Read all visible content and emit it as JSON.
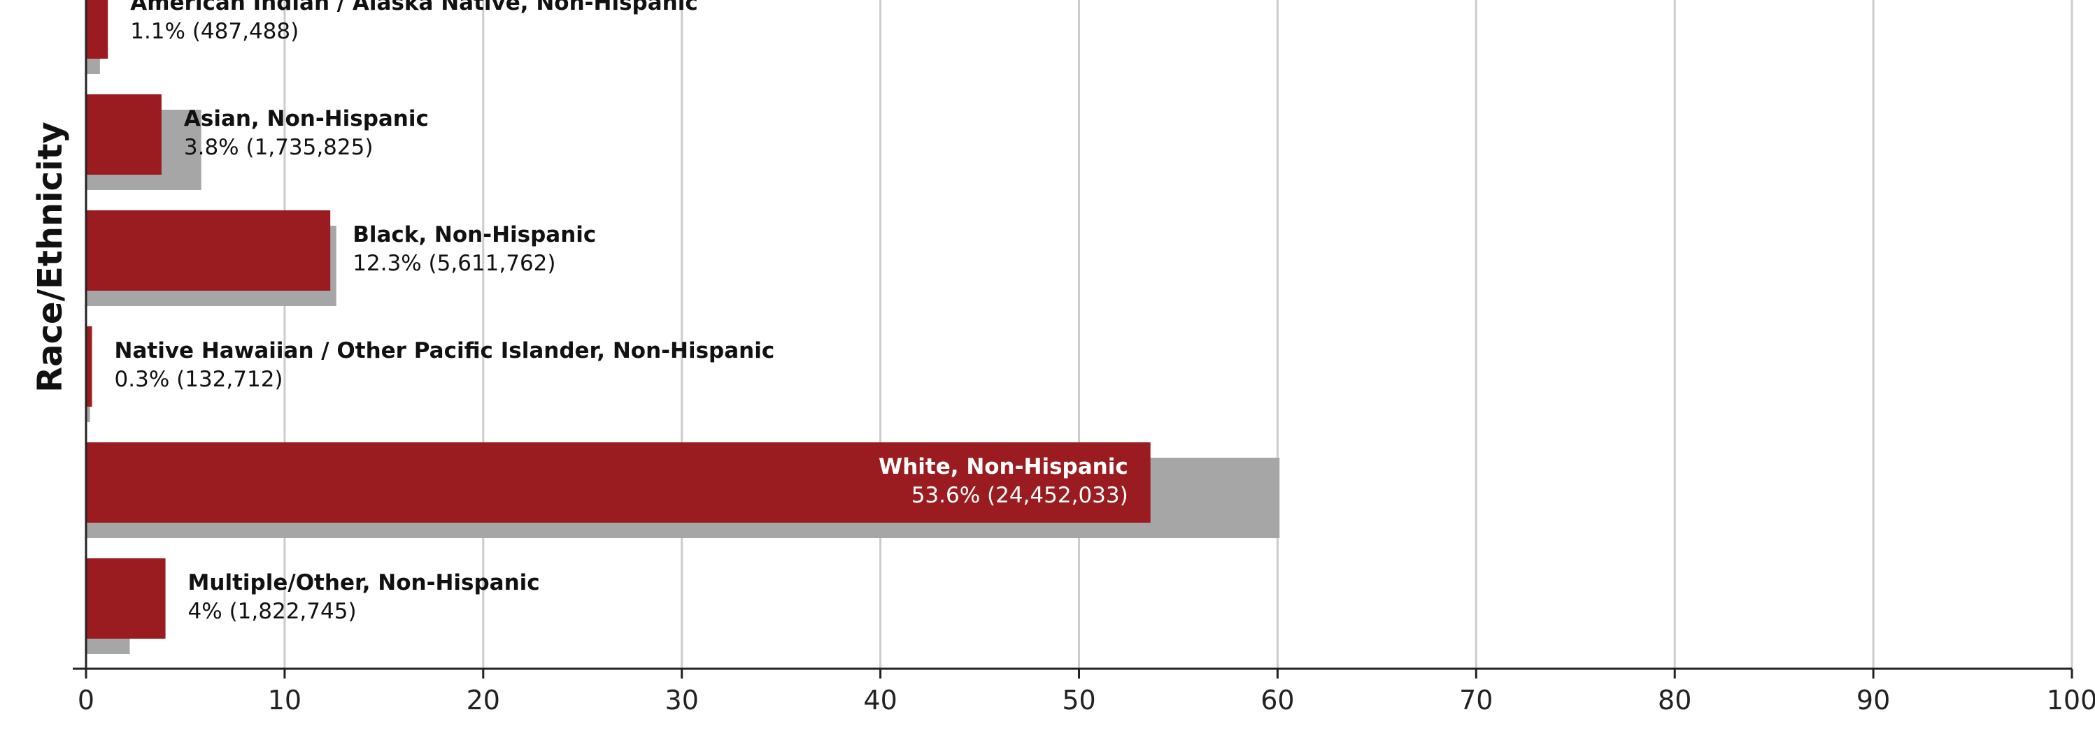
{
  "chart_data": {
    "type": "bar",
    "orientation": "horizontal",
    "ylabel": "Race/Ethnicity",
    "xlabel": "",
    "xlim": [
      0,
      100
    ],
    "x_ticks": [
      0,
      10,
      20,
      30,
      40,
      50,
      60,
      70,
      80,
      90,
      100
    ],
    "grid": true,
    "colors": {
      "primary": "#9b1c20",
      "comparison": "#a6a6a6"
    },
    "categories": [
      "American Indian / Alaska Native, Non-Hispanic",
      "Asian, Non-Hispanic",
      "Black, Non-Hispanic",
      "Native Hawaiian / Other Pacific Islander, Non-Hispanic",
      "White, Non-Hispanic",
      "Multiple/Other, Non-Hispanic"
    ],
    "series": [
      {
        "values": [
          1.1,
          3.8,
          12.3,
          0.3,
          53.6,
          4.0
        ]
      },
      {
        "values": [
          0.7,
          5.8,
          12.6,
          0.2,
          60.1,
          2.2
        ]
      }
    ],
    "value_labels": [
      "1.1% (487,488)",
      "3.8% (1,735,825)",
      "12.3% (5,611,762)",
      "0.3% (132,712)",
      "53.6% (24,452,033)",
      "4% (1,822,745)"
    ]
  }
}
